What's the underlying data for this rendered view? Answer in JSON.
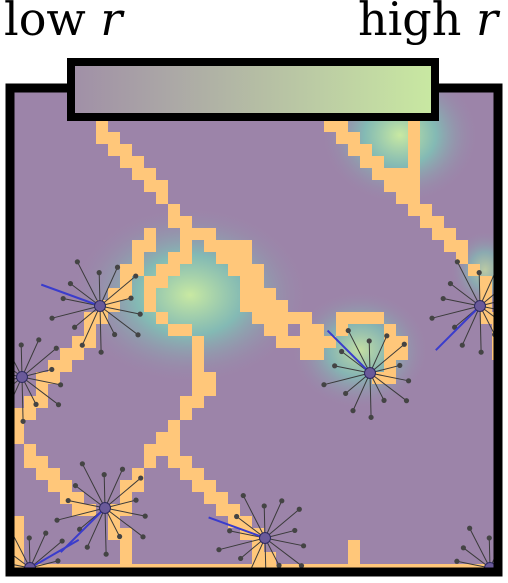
{
  "legend": {
    "low_word": "low",
    "high_word": "high",
    "variable": "r",
    "gradient_low_color": "#a08fa7",
    "gradient_high_color": "#c9e9a2"
  },
  "colors": {
    "background_field": "#9c84a9",
    "hotspot_center": "#c9e9a2",
    "hotspot_mid": "#7fc3b6",
    "path_cells": "#ffc77a",
    "spoke_line": "#3a3a3a",
    "spoke_tip": "#444444",
    "highlight_spoke": "#3a3ccc",
    "frame": "#000000"
  },
  "icons": [
    "star-burst-node-icon"
  ]
}
